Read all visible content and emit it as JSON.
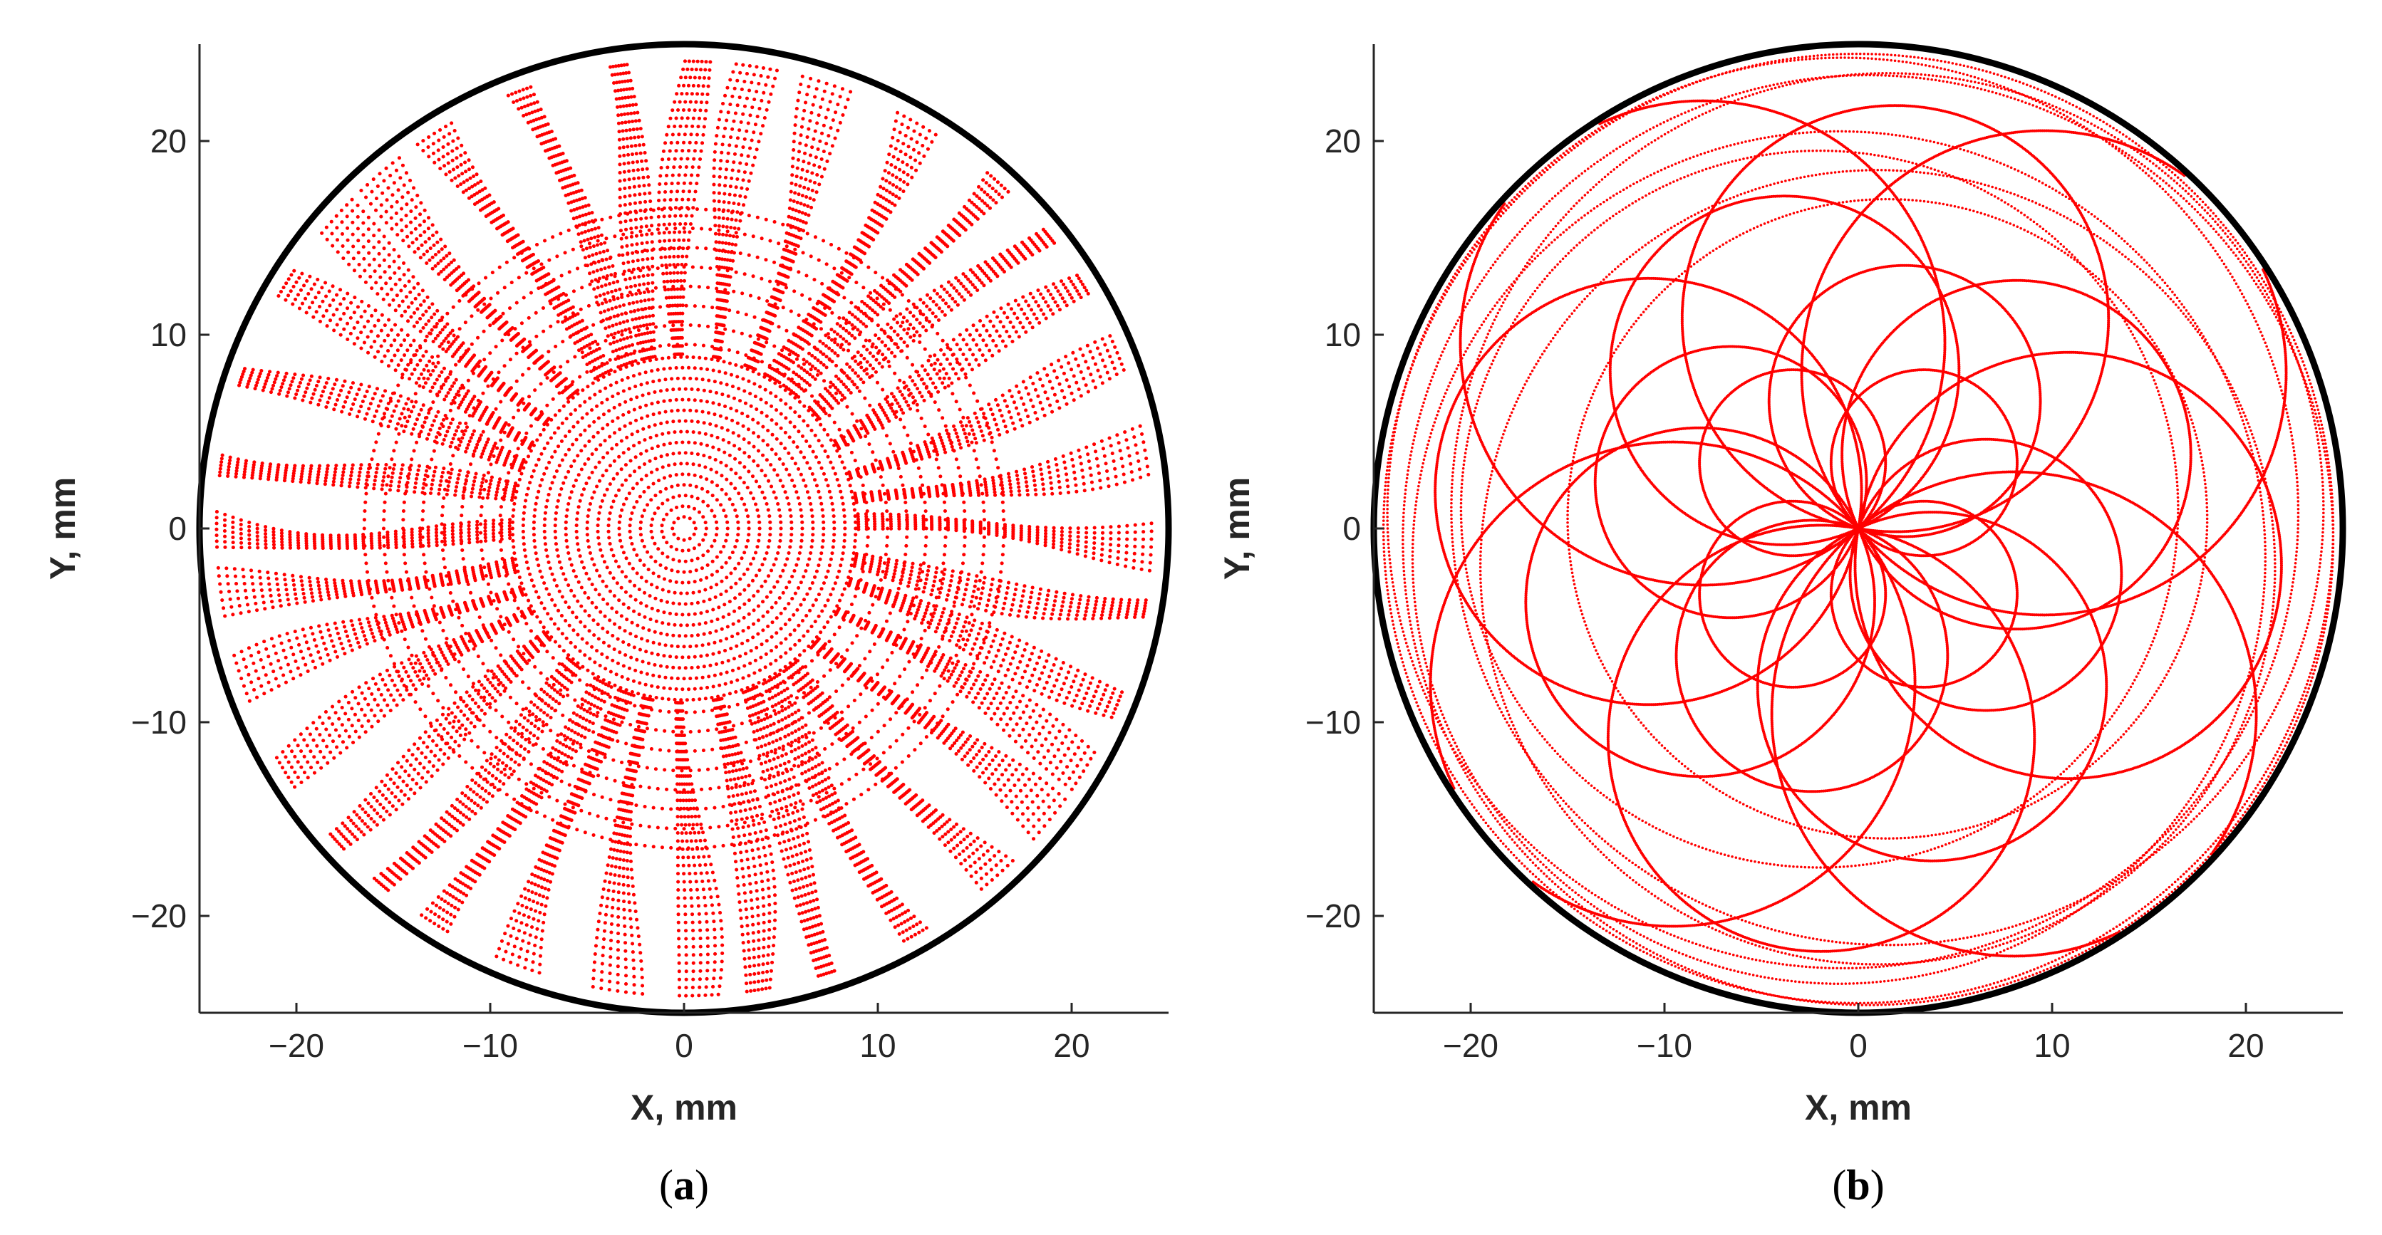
{
  "chart_data": [
    {
      "type": "scatter",
      "panel_label": "a",
      "xlabel": "X, mm",
      "ylabel": "Y, mm",
      "xlim": [
        -25,
        25
      ],
      "ylim": [
        -25,
        25
      ],
      "xticks": [
        -20,
        -10,
        0,
        10,
        20
      ],
      "yticks": [
        -20,
        -10,
        0,
        10,
        20
      ],
      "xtick_labels": [
        "−20",
        "−10",
        "0",
        "10",
        "20"
      ],
      "ytick_labels": [
        "−20",
        "−10",
        "0",
        "10",
        "20"
      ],
      "grid": false,
      "boundary": {
        "shape": "circle",
        "center": [
          0,
          0
        ],
        "radius": 25,
        "color": "#000000"
      },
      "series": [
        {
          "marker": "dot",
          "color": "#ff0000",
          "pattern": "radial-spokes",
          "description_params": {
            "spokes": 36,
            "rings_max_radius": 25,
            "dense_rings_within_radius": 5,
            "point_spacing_mm": 0.5
          }
        }
      ]
    },
    {
      "type": "scatter",
      "panel_label": "b",
      "xlabel": "X, mm",
      "ylabel": "Y, mm",
      "xlim": [
        -25,
        25
      ],
      "ylim": [
        -25,
        25
      ],
      "xticks": [
        -20,
        -10,
        0,
        10,
        20
      ],
      "yticks": [
        -20,
        -10,
        0,
        10,
        20
      ],
      "xtick_labels": [
        "−20",
        "−10",
        "0",
        "10",
        "20"
      ],
      "ytick_labels": [
        "−20",
        "−10",
        "0",
        "10",
        "20"
      ],
      "grid": false,
      "boundary": {
        "shape": "circle",
        "center": [
          0,
          0
        ],
        "radius": 25,
        "color": "#000000"
      },
      "series": [
        {
          "marker": "dot",
          "color": "#ff0000",
          "pattern": "circles-through-origin",
          "circles": [
            {
              "radius": 4.8,
              "angle_deg": 45
            },
            {
              "radius": 4.8,
              "angle_deg": 135
            },
            {
              "radius": 4.8,
              "angle_deg": 225
            },
            {
              "radius": 4.8,
              "angle_deg": 315
            },
            {
              "radius": 7.0,
              "angle_deg": 70
            },
            {
              "radius": 7.0,
              "angle_deg": 160
            },
            {
              "radius": 7.0,
              "angle_deg": 250
            },
            {
              "radius": 7.0,
              "angle_deg": 340
            },
            {
              "radius": 9.0,
              "angle_deg": 25
            },
            {
              "radius": 9.0,
              "angle_deg": 115
            },
            {
              "radius": 9.0,
              "angle_deg": 205
            },
            {
              "radius": 9.0,
              "angle_deg": 295
            },
            {
              "radius": 11.0,
              "angle_deg": 80
            },
            {
              "radius": 11.0,
              "angle_deg": 170
            },
            {
              "radius": 11.0,
              "angle_deg": 260
            },
            {
              "radius": 11.0,
              "angle_deg": 350
            },
            {
              "radius": 12.5,
              "angle_deg": 40
            },
            {
              "radius": 12.5,
              "angle_deg": 130
            },
            {
              "radius": 12.5,
              "angle_deg": 220
            },
            {
              "radius": 12.5,
              "angle_deg": 310
            }
          ],
          "outer_rings": [
            {
              "radius": 16.5,
              "offset": [
                1.5,
                0.5
              ]
            },
            {
              "radius": 18.5,
              "offset": [
                -2.0,
                1.0
              ]
            },
            {
              "radius": 20.5,
              "offset": [
                1.0,
                -2.0
              ]
            },
            {
              "radius": 22.0,
              "offset": [
                -1.0,
                -1.5
              ]
            },
            {
              "radius": 22.5,
              "offset": [
                1.5,
                1.0
              ]
            },
            {
              "radius": 23.5,
              "offset": [
                -0.8,
                0.8
              ]
            },
            {
              "radius": 24.0,
              "offset": [
                0.5,
                -0.6
              ]
            },
            {
              "radius": 24.5,
              "offset": [
                0,
                0
              ]
            }
          ]
        }
      ]
    }
  ]
}
